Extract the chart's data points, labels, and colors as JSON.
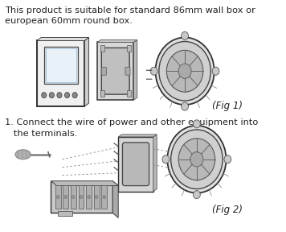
{
  "background_color": "#ffffff",
  "figsize": [
    3.56,
    2.88
  ],
  "dpi": 100,
  "text_color": "#222222",
  "text1": "This product is suitable for standard 86mm wall box or\neuropean 60mm round box.",
  "text2": "1. Connect the wire of power and other equipment into\n   the terminals.",
  "fig1_label": "(Fig 1)",
  "fig2_label": "(Fig 2)",
  "font_size_text": 8.2,
  "font_size_label": 8.5,
  "line_color": "#333333",
  "light_gray": "#cccccc",
  "mid_gray": "#aaaaaa",
  "dark_gray": "#555555"
}
